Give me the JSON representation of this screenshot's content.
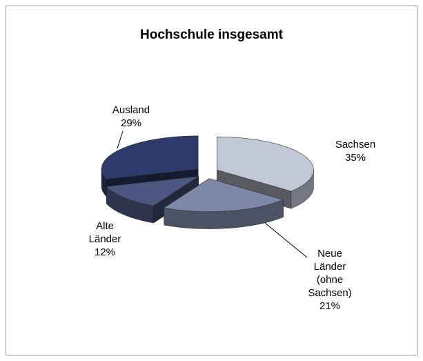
{
  "chart_data": {
    "type": "pie3d",
    "title": "Hochschule insgesamt",
    "categories": [
      "Sachsen",
      "Neue Länder (ohne Sachsen)",
      "Alte Länder",
      "Ausland"
    ],
    "values": [
      35,
      21,
      12,
      29
    ],
    "value_labels": [
      "35%",
      "21%",
      "12%",
      "29%"
    ],
    "colors": [
      "#c3c8d6",
      "#7d88a9",
      "#4b5781",
      "#2c3b6b"
    ]
  }
}
